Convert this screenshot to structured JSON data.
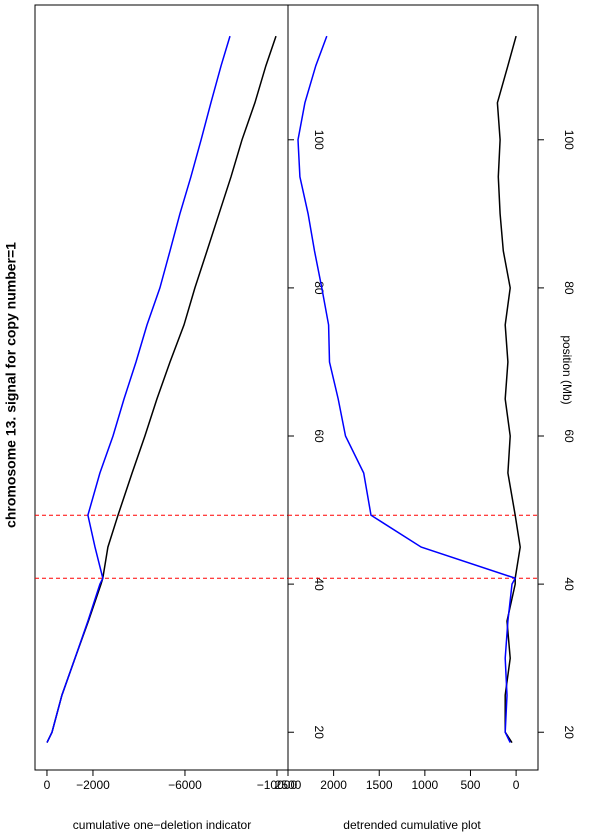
{
  "chart_data": [
    {
      "type": "line",
      "title": "chromosome 13. signal for copy number=1",
      "ylabel": "cumulative one−deletion indicator",
      "x": [
        18.6,
        20,
        25,
        30,
        35,
        40,
        40.8,
        45,
        49.3,
        55,
        60,
        65,
        70,
        75,
        80,
        85,
        90,
        95,
        100,
        105,
        110,
        114
      ],
      "series": [
        {
          "color": "#000000",
          "values": [
            0,
            -220,
            -650,
            -1220,
            -1800,
            -2350,
            -2430,
            -2650,
            -3090,
            -3700,
            -4260,
            -4780,
            -5350,
            -5960,
            -6430,
            -6960,
            -7480,
            -8000,
            -8480,
            -9040,
            -9520,
            -9960
          ]
        },
        {
          "color": "#0000ff",
          "values": [
            0,
            -220,
            -650,
            -1220,
            -1780,
            -2300,
            -2430,
            -2090,
            -1780,
            -2300,
            -2870,
            -3350,
            -3870,
            -4350,
            -4910,
            -5350,
            -5780,
            -6260,
            -6700,
            -7130,
            -7570,
            -7960
          ]
        }
      ],
      "xlim": [
        14.9,
        118.2
      ],
      "xticks": [
        20,
        40,
        60,
        80,
        100
      ],
      "ylim": [
        -10480,
        520
      ],
      "yticks": [
        0,
        {
          "value": -2000,
          "label": "−2000"
        },
        {
          "value": -6000,
          "label": "−6000"
        },
        {
          "value": -10000,
          "label": "−10000"
        }
      ],
      "vlines": [
        40.8,
        49.3
      ],
      "vline_color": "#ff0000"
    },
    {
      "type": "line",
      "xlabel": "position (Mb)",
      "ylabel": "detrended cumulative plot",
      "x": [
        18.6,
        20,
        25,
        30,
        35,
        40,
        40.8,
        45,
        49.3,
        55,
        60,
        65,
        70,
        75,
        80,
        85,
        90,
        95,
        100,
        105,
        110,
        114
      ],
      "series": [
        {
          "color": "#000000",
          "values": [
            45,
            120,
            120,
            65,
            100,
            10,
            10,
            -45,
            10,
            90,
            65,
            120,
            90,
            120,
            65,
            140,
            175,
            195,
            175,
            205,
            90,
            0
          ]
        },
        {
          "color": "#0000ff",
          "values": [
            65,
            120,
            100,
            120,
            90,
            45,
            10,
            1040,
            1590,
            1670,
            1870,
            1950,
            2045,
            2055,
            2130,
            2210,
            2280,
            2370,
            2390,
            2315,
            2195,
            2075
          ]
        }
      ],
      "xlim": [
        14.9,
        118.2
      ],
      "xticks": [
        20,
        40,
        60,
        80,
        100
      ],
      "ylim": [
        -240,
        2500
      ],
      "yticks": [
        0,
        500,
        1000,
        1500,
        2000,
        2500
      ],
      "vlines": [
        40.8,
        49.3
      ],
      "vline_color": "#ff0000"
    }
  ]
}
